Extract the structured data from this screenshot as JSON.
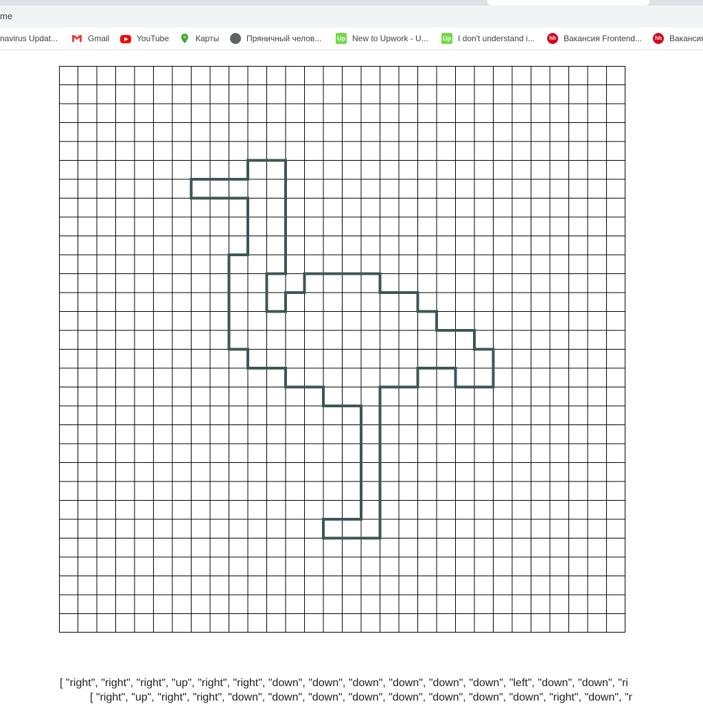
{
  "browser": {
    "address_fragment": "me",
    "bookmarks": [
      {
        "label": "navirus Updat...",
        "icon": "none"
      },
      {
        "label": "Gmail",
        "icon": "gmail-icon"
      },
      {
        "label": "YouTube",
        "icon": "youtube-icon"
      },
      {
        "label": "Карты",
        "icon": "maps-icon"
      },
      {
        "label": "Пряничный челов...",
        "icon": "globe-icon"
      },
      {
        "label": "New to Upwork - U...",
        "icon": "upwork-icon",
        "icon_text": "Up"
      },
      {
        "label": "I don't understand i...",
        "icon": "upwork-icon",
        "icon_text": "Up"
      },
      {
        "label": "Вакансия Frontend...",
        "icon": "hh-icon",
        "icon_text": "hh"
      },
      {
        "label": "Вакансия",
        "icon": "hh-icon",
        "icon_text": "hh"
      }
    ]
  },
  "grid": {
    "cols": 30,
    "rows": 30,
    "line_color": "#000000",
    "path_color": "#3d5555",
    "outline_vertices": [
      [
        10,
        5
      ],
      [
        12,
        5
      ],
      [
        12,
        11
      ],
      [
        11,
        11
      ],
      [
        11,
        13
      ],
      [
        12,
        13
      ],
      [
        12,
        12
      ],
      [
        13,
        12
      ],
      [
        13,
        11
      ],
      [
        17,
        11
      ],
      [
        17,
        12
      ],
      [
        19,
        12
      ],
      [
        19,
        13
      ],
      [
        20,
        13
      ],
      [
        20,
        14
      ],
      [
        22,
        14
      ],
      [
        22,
        15
      ],
      [
        23,
        15
      ],
      [
        23,
        17
      ],
      [
        21,
        17
      ],
      [
        21,
        16
      ],
      [
        19,
        16
      ],
      [
        19,
        17
      ],
      [
        17,
        17
      ],
      [
        17,
        25
      ],
      [
        14,
        25
      ],
      [
        14,
        24
      ],
      [
        16,
        24
      ],
      [
        16,
        18
      ],
      [
        14,
        18
      ],
      [
        14,
        17
      ],
      [
        12,
        17
      ],
      [
        12,
        16
      ],
      [
        10,
        16
      ],
      [
        10,
        15
      ],
      [
        9,
        15
      ],
      [
        9,
        10
      ],
      [
        10,
        10
      ],
      [
        10,
        7
      ],
      [
        7,
        7
      ],
      [
        7,
        6
      ],
      [
        10,
        6
      ]
    ]
  },
  "output": {
    "line1": "[ \"right\", \"right\", \"right\", \"up\", \"right\", \"right\", \"down\", \"down\", \"down\", \"down\", \"down\", \"down\", \"left\", \"down\", \"down\", \"ri",
    "line2": "[ \"right\", \"up\", \"right\", \"right\", \"down\", \"down\", \"down\", \"down\", \"down\", \"down\", \"down\", \"down\", \"right\", \"down\", \"r"
  }
}
